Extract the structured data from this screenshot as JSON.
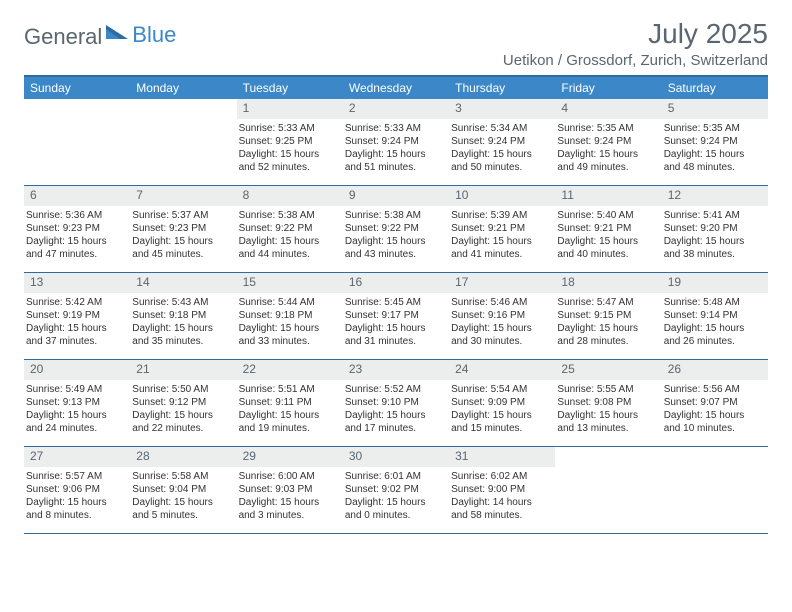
{
  "brand": {
    "text1": "General",
    "text2": "Blue"
  },
  "title": "July 2025",
  "location": "Uetikon / Grossdorf, Zurich, Switzerland",
  "colors": {
    "header_bg": "#3b87c8",
    "header_text": "#ffffff",
    "border": "#2d6ca2",
    "daynum_bg": "#eceded",
    "daynum_text": "#5a6670",
    "body_text": "#333333",
    "brand_gray": "#5a6670",
    "brand_blue": "#3b87c8"
  },
  "day_names": [
    "Sunday",
    "Monday",
    "Tuesday",
    "Wednesday",
    "Thursday",
    "Friday",
    "Saturday"
  ],
  "weeks": [
    [
      {
        "n": "",
        "sr": "",
        "ss": "",
        "dl1": "",
        "dl2": ""
      },
      {
        "n": "",
        "sr": "",
        "ss": "",
        "dl1": "",
        "dl2": ""
      },
      {
        "n": "1",
        "sr": "Sunrise: 5:33 AM",
        "ss": "Sunset: 9:25 PM",
        "dl1": "Daylight: 15 hours",
        "dl2": "and 52 minutes."
      },
      {
        "n": "2",
        "sr": "Sunrise: 5:33 AM",
        "ss": "Sunset: 9:24 PM",
        "dl1": "Daylight: 15 hours",
        "dl2": "and 51 minutes."
      },
      {
        "n": "3",
        "sr": "Sunrise: 5:34 AM",
        "ss": "Sunset: 9:24 PM",
        "dl1": "Daylight: 15 hours",
        "dl2": "and 50 minutes."
      },
      {
        "n": "4",
        "sr": "Sunrise: 5:35 AM",
        "ss": "Sunset: 9:24 PM",
        "dl1": "Daylight: 15 hours",
        "dl2": "and 49 minutes."
      },
      {
        "n": "5",
        "sr": "Sunrise: 5:35 AM",
        "ss": "Sunset: 9:24 PM",
        "dl1": "Daylight: 15 hours",
        "dl2": "and 48 minutes."
      }
    ],
    [
      {
        "n": "6",
        "sr": "Sunrise: 5:36 AM",
        "ss": "Sunset: 9:23 PM",
        "dl1": "Daylight: 15 hours",
        "dl2": "and 47 minutes."
      },
      {
        "n": "7",
        "sr": "Sunrise: 5:37 AM",
        "ss": "Sunset: 9:23 PM",
        "dl1": "Daylight: 15 hours",
        "dl2": "and 45 minutes."
      },
      {
        "n": "8",
        "sr": "Sunrise: 5:38 AM",
        "ss": "Sunset: 9:22 PM",
        "dl1": "Daylight: 15 hours",
        "dl2": "and 44 minutes."
      },
      {
        "n": "9",
        "sr": "Sunrise: 5:38 AM",
        "ss": "Sunset: 9:22 PM",
        "dl1": "Daylight: 15 hours",
        "dl2": "and 43 minutes."
      },
      {
        "n": "10",
        "sr": "Sunrise: 5:39 AM",
        "ss": "Sunset: 9:21 PM",
        "dl1": "Daylight: 15 hours",
        "dl2": "and 41 minutes."
      },
      {
        "n": "11",
        "sr": "Sunrise: 5:40 AM",
        "ss": "Sunset: 9:21 PM",
        "dl1": "Daylight: 15 hours",
        "dl2": "and 40 minutes."
      },
      {
        "n": "12",
        "sr": "Sunrise: 5:41 AM",
        "ss": "Sunset: 9:20 PM",
        "dl1": "Daylight: 15 hours",
        "dl2": "and 38 minutes."
      }
    ],
    [
      {
        "n": "13",
        "sr": "Sunrise: 5:42 AM",
        "ss": "Sunset: 9:19 PM",
        "dl1": "Daylight: 15 hours",
        "dl2": "and 37 minutes."
      },
      {
        "n": "14",
        "sr": "Sunrise: 5:43 AM",
        "ss": "Sunset: 9:18 PM",
        "dl1": "Daylight: 15 hours",
        "dl2": "and 35 minutes."
      },
      {
        "n": "15",
        "sr": "Sunrise: 5:44 AM",
        "ss": "Sunset: 9:18 PM",
        "dl1": "Daylight: 15 hours",
        "dl2": "and 33 minutes."
      },
      {
        "n": "16",
        "sr": "Sunrise: 5:45 AM",
        "ss": "Sunset: 9:17 PM",
        "dl1": "Daylight: 15 hours",
        "dl2": "and 31 minutes."
      },
      {
        "n": "17",
        "sr": "Sunrise: 5:46 AM",
        "ss": "Sunset: 9:16 PM",
        "dl1": "Daylight: 15 hours",
        "dl2": "and 30 minutes."
      },
      {
        "n": "18",
        "sr": "Sunrise: 5:47 AM",
        "ss": "Sunset: 9:15 PM",
        "dl1": "Daylight: 15 hours",
        "dl2": "and 28 minutes."
      },
      {
        "n": "19",
        "sr": "Sunrise: 5:48 AM",
        "ss": "Sunset: 9:14 PM",
        "dl1": "Daylight: 15 hours",
        "dl2": "and 26 minutes."
      }
    ],
    [
      {
        "n": "20",
        "sr": "Sunrise: 5:49 AM",
        "ss": "Sunset: 9:13 PM",
        "dl1": "Daylight: 15 hours",
        "dl2": "and 24 minutes."
      },
      {
        "n": "21",
        "sr": "Sunrise: 5:50 AM",
        "ss": "Sunset: 9:12 PM",
        "dl1": "Daylight: 15 hours",
        "dl2": "and 22 minutes."
      },
      {
        "n": "22",
        "sr": "Sunrise: 5:51 AM",
        "ss": "Sunset: 9:11 PM",
        "dl1": "Daylight: 15 hours",
        "dl2": "and 19 minutes."
      },
      {
        "n": "23",
        "sr": "Sunrise: 5:52 AM",
        "ss": "Sunset: 9:10 PM",
        "dl1": "Daylight: 15 hours",
        "dl2": "and 17 minutes."
      },
      {
        "n": "24",
        "sr": "Sunrise: 5:54 AM",
        "ss": "Sunset: 9:09 PM",
        "dl1": "Daylight: 15 hours",
        "dl2": "and 15 minutes."
      },
      {
        "n": "25",
        "sr": "Sunrise: 5:55 AM",
        "ss": "Sunset: 9:08 PM",
        "dl1": "Daylight: 15 hours",
        "dl2": "and 13 minutes."
      },
      {
        "n": "26",
        "sr": "Sunrise: 5:56 AM",
        "ss": "Sunset: 9:07 PM",
        "dl1": "Daylight: 15 hours",
        "dl2": "and 10 minutes."
      }
    ],
    [
      {
        "n": "27",
        "sr": "Sunrise: 5:57 AM",
        "ss": "Sunset: 9:06 PM",
        "dl1": "Daylight: 15 hours",
        "dl2": "and 8 minutes."
      },
      {
        "n": "28",
        "sr": "Sunrise: 5:58 AM",
        "ss": "Sunset: 9:04 PM",
        "dl1": "Daylight: 15 hours",
        "dl2": "and 5 minutes."
      },
      {
        "n": "29",
        "sr": "Sunrise: 6:00 AM",
        "ss": "Sunset: 9:03 PM",
        "dl1": "Daylight: 15 hours",
        "dl2": "and 3 minutes."
      },
      {
        "n": "30",
        "sr": "Sunrise: 6:01 AM",
        "ss": "Sunset: 9:02 PM",
        "dl1": "Daylight: 15 hours",
        "dl2": "and 0 minutes."
      },
      {
        "n": "31",
        "sr": "Sunrise: 6:02 AM",
        "ss": "Sunset: 9:00 PM",
        "dl1": "Daylight: 14 hours",
        "dl2": "and 58 minutes."
      },
      {
        "n": "",
        "sr": "",
        "ss": "",
        "dl1": "",
        "dl2": ""
      },
      {
        "n": "",
        "sr": "",
        "ss": "",
        "dl1": "",
        "dl2": ""
      }
    ]
  ]
}
